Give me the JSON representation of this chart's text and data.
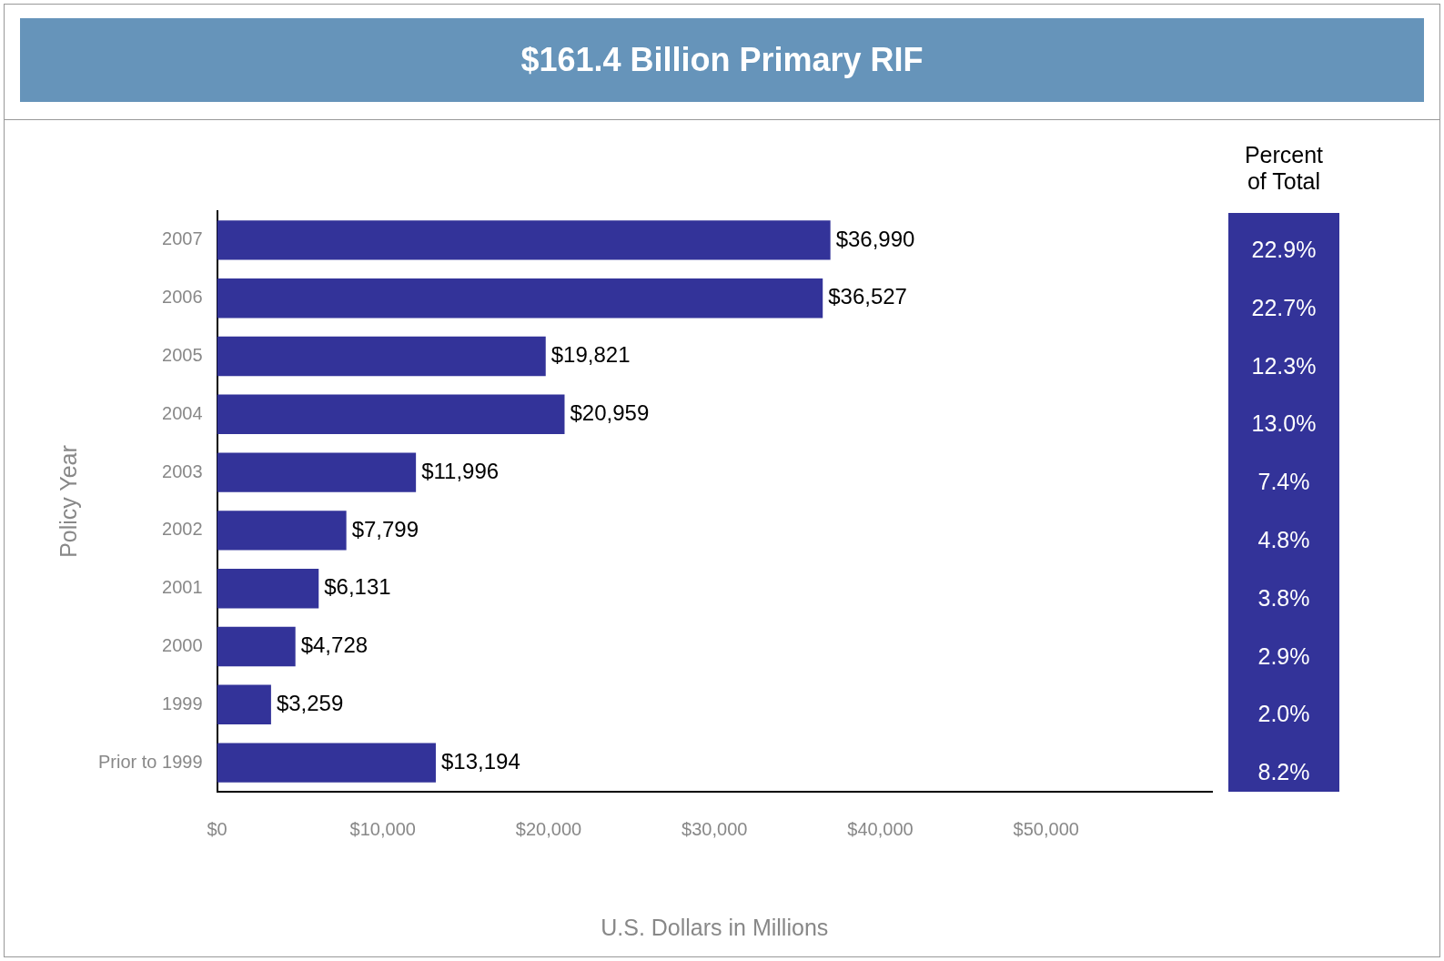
{
  "chart_data": {
    "type": "bar",
    "orientation": "horizontal",
    "title": "$161.4 Billion Primary RIF",
    "xlabel": "U.S. Dollars in Millions",
    "ylabel": "Policy Year",
    "categories": [
      "2007",
      "2006",
      "2005",
      "2004",
      "2003",
      "2002",
      "2001",
      "2000",
      "1999",
      "Prior to 1999"
    ],
    "values": [
      36990,
      36527,
      19821,
      20959,
      11996,
      7799,
      6131,
      4728,
      3259,
      13194
    ],
    "value_labels": [
      "$36,990",
      "$36,527",
      "$19,821",
      "$20,959",
      "$11,996",
      "$7,799",
      "$6,131",
      "$4,728",
      "$3,259",
      "$13,194"
    ],
    "color": "#333399",
    "xlim": [
      0,
      60000
    ],
    "xticks": [
      {
        "value": 0,
        "label": "$0"
      },
      {
        "value": 10000,
        "label": "$10,000"
      },
      {
        "value": 20000,
        "label": "$20,000"
      },
      {
        "value": 30000,
        "label": "$30,000"
      },
      {
        "value": 40000,
        "label": "$40,000"
      },
      {
        "value": 50000,
        "label": "$50,000"
      }
    ],
    "grid": false,
    "legend": false,
    "annotations": [
      "Percent of Total",
      "22.9%",
      "22.7%",
      "12.3%",
      "13.0%",
      "7.4%",
      "4.8%",
      "3.8%",
      "2.9%",
      "2.0%",
      "8.2%"
    ]
  }
}
